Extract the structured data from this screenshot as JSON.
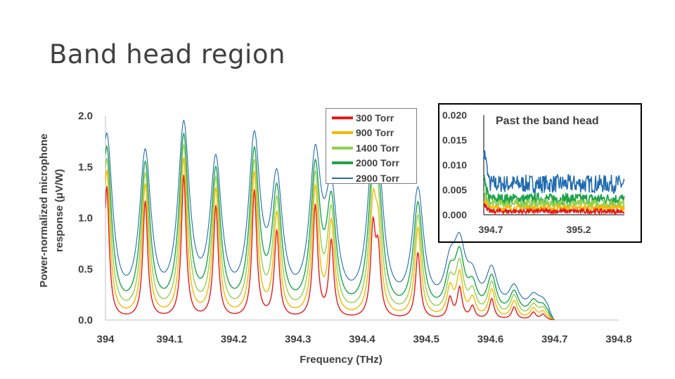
{
  "page": {
    "title": "Band head region"
  },
  "colors": {
    "300 Torr": "#e41a1c",
    "900 Torr": "#f5b800",
    "1400 Torr": "#92d050",
    "2000 Torr": "#1fa34a",
    "2900 Torr": "#1f6bb0"
  },
  "chart_data": [
    {
      "type": "line",
      "xlabel": "Frequency (THz)",
      "ylabel": "Power-normalized microphone response (μV/W)",
      "xlim": [
        394.0,
        394.8
      ],
      "ylim": [
        0.0,
        2.0
      ],
      "x_ticks": [
        "394",
        "394.1",
        "394.2",
        "394.3",
        "394.4",
        "394.5",
        "394.6",
        "394.7",
        "394.8"
      ],
      "y_ticks": [
        "0.0",
        "0.5",
        "1.0",
        "1.5",
        "2.0"
      ],
      "grid": false,
      "legend_position": "top-center",
      "series": [
        {
          "name": "300 Torr",
          "color": "#e41a1c"
        },
        {
          "name": "900 Torr",
          "color": "#f5b800"
        },
        {
          "name": "1400 Torr",
          "color": "#92d050"
        },
        {
          "name": "2000 Torr",
          "color": "#1fa34a"
        },
        {
          "name": "2900 Torr",
          "color": "#1f6bb0"
        }
      ],
      "peaks": [
        {
          "x": 394.002,
          "heights": [
            1.3,
            1.45,
            1.55,
            1.65,
            1.75
          ]
        },
        {
          "x": 394.062,
          "heights": [
            1.15,
            1.3,
            1.38,
            1.46,
            1.53
          ]
        },
        {
          "x": 394.122,
          "heights": [
            1.4,
            1.55,
            1.65,
            1.72,
            1.79
          ]
        },
        {
          "x": 394.172,
          "heights": [
            1.1,
            1.25,
            1.32,
            1.38,
            1.43
          ]
        },
        {
          "x": 394.232,
          "heights": [
            1.25,
            1.4,
            1.48,
            1.55,
            1.63
          ]
        },
        {
          "x": 394.267,
          "heights": [
            0.85,
            1.0,
            1.1,
            1.17,
            1.22
          ]
        },
        {
          "x": 394.327,
          "heights": [
            1.1,
            1.25,
            1.33,
            1.38,
            1.43
          ]
        },
        {
          "x": 394.352,
          "heights": [
            0.75,
            0.9,
            0.97,
            1.03,
            1.07
          ]
        },
        {
          "x": 394.417,
          "heights": [
            0.85,
            0.98,
            1.05,
            1.12,
            1.16
          ]
        },
        {
          "x": 394.425,
          "heights": [
            0.6,
            0.72,
            0.8,
            0.86,
            0.9
          ]
        },
        {
          "x": 394.487,
          "heights": [
            0.65,
            0.88,
            0.98,
            1.08,
            1.18
          ]
        },
        {
          "x": 394.537,
          "heights": [
            0.2,
            0.28,
            0.32,
            0.35,
            0.38
          ]
        },
        {
          "x": 394.552,
          "heights": [
            0.3,
            0.42,
            0.48,
            0.53,
            0.57
          ]
        },
        {
          "x": 394.572,
          "heights": [
            0.12,
            0.18,
            0.22,
            0.25,
            0.28
          ]
        },
        {
          "x": 394.602,
          "heights": [
            0.2,
            0.28,
            0.33,
            0.37,
            0.41
          ]
        },
        {
          "x": 394.637,
          "heights": [
            0.12,
            0.17,
            0.21,
            0.23,
            0.25
          ]
        },
        {
          "x": 394.667,
          "heights": [
            0.07,
            0.1,
            0.12,
            0.14,
            0.16
          ]
        },
        {
          "x": 394.682,
          "heights": [
            0.05,
            0.07,
            0.09,
            0.1,
            0.12
          ]
        }
      ],
      "line_widths": [
        0.045,
        0.06,
        0.075,
        0.09,
        0.11
      ]
    },
    {
      "type": "line",
      "title": "Past the band head",
      "xlim": [
        394.7,
        395.5
      ],
      "ylim": [
        0.0,
        0.02
      ],
      "x_ticks": [
        "394.7",
        "395.2"
      ],
      "y_ticks": [
        "0.000",
        "0.005",
        "0.010",
        "0.015",
        "0.020"
      ],
      "series": [
        {
          "name": "300 Torr",
          "level": 0.0007
        },
        {
          "name": "900 Torr",
          "level": 0.0013
        },
        {
          "name": "1400 Torr",
          "level": 0.0022
        },
        {
          "name": "2000 Torr",
          "level": 0.0032
        },
        {
          "name": "2900 Torr",
          "level": 0.0062
        }
      ]
    }
  ]
}
